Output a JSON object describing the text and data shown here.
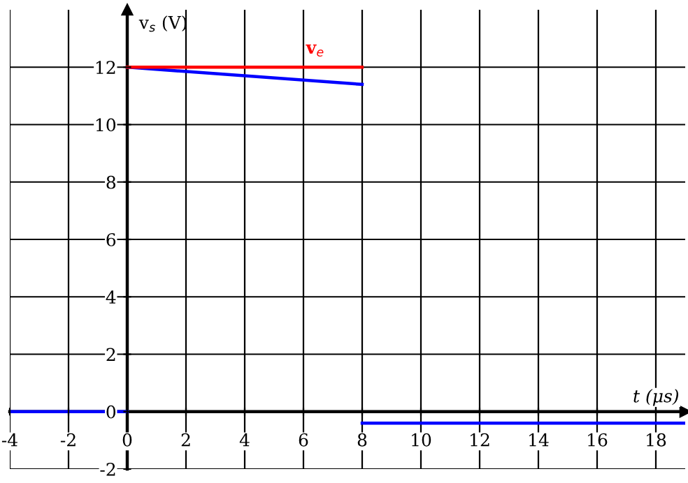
{
  "chart_data": {
    "type": "line",
    "xlabel": "t (μs)",
    "ylabel": "v$_{s}$ (V)",
    "xlim": [
      -4,
      19
    ],
    "ylim": [
      -2,
      14
    ],
    "xticks": [
      -4,
      -2,
      0,
      2,
      4,
      6,
      8,
      10,
      12,
      14,
      16,
      18
    ],
    "yticks": [
      -2,
      0,
      2,
      4,
      6,
      8,
      10,
      12
    ],
    "grid": true,
    "legend": false,
    "line_style": "solid",
    "series": [
      {
        "color": "#0000ff",
        "x": [
          -4,
          0
        ],
        "values": [
          0,
          0
        ]
      },
      {
        "color": "#0000ff",
        "x": [
          0,
          8
        ],
        "values": [
          12,
          11.4
        ]
      },
      {
        "color": "#0000ff",
        "x": [
          8,
          19
        ],
        "values": [
          -0.4,
          -0.4
        ]
      },
      {
        "name": "v$_{e}$",
        "color": "#ff0000",
        "x": [
          0,
          8
        ],
        "values": [
          12,
          12
        ]
      }
    ]
  }
}
